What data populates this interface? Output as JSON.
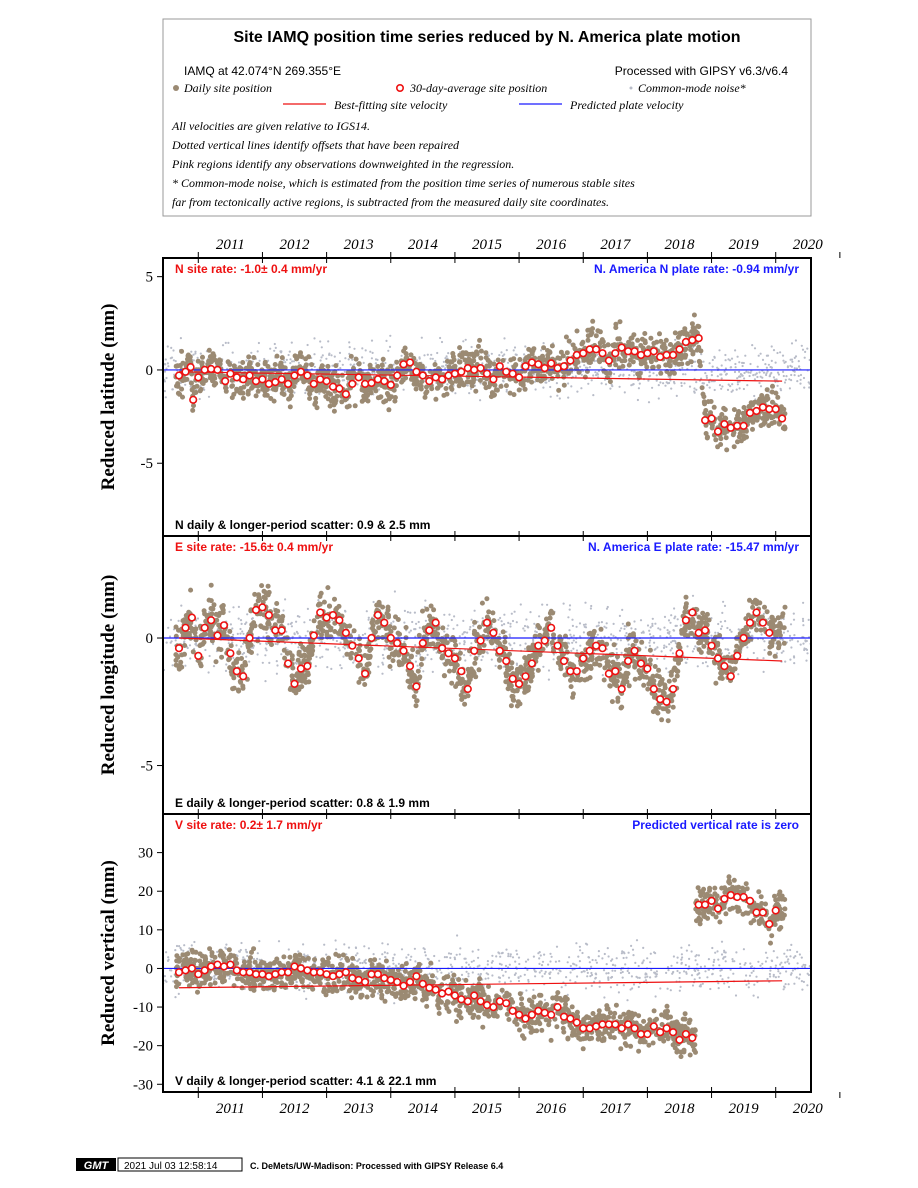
{
  "header": {
    "title": "Site IAMQ position time series reduced by N. America plate motion",
    "site_line": "IAMQ at 42.074°N 269.355°E",
    "processed": "Processed with GIPSY v6.3/v6.4",
    "legend": {
      "daily": "Daily site position",
      "avg30": "30-day-average site position",
      "cmn": "Common-mode noise*",
      "best": "Best-fitting site velocity",
      "predicted": "Predicted plate velocity"
    },
    "notes": [
      "All velocities are given relative to IGS14.",
      "Dotted vertical lines identify offsets that have been repaired",
      "Pink regions identify any observations downweighted in the regression.",
      "* Common-mode noise, which is estimated from the position time series of numerous stable sites",
      "far from tectonically active regions, is subtracted from the measured daily site coordinates."
    ]
  },
  "colors": {
    "daily": "#9b8a73",
    "cmn": "#b8bcc8",
    "avg_fill": "#ffffff",
    "avg_ring": "#ee1111",
    "fit_line": "#ee1111",
    "plate_line": "#1a1aff",
    "rate_text": "#ee1111",
    "plate_text": "#1a1aff"
  },
  "footer": {
    "logo": "GMT",
    "timestamp": "2021 Jul 03 12:58:14",
    "credit": "C. DeMets/UW-Madison: Processed with GIPSY Release 6.4"
  },
  "chart_data": [
    {
      "type": "scatter",
      "component": "N",
      "ylabel": "Reduced latitude (mm)",
      "ylim": [
        -8.9,
        6.0
      ],
      "yticks": [
        5,
        0,
        -5
      ],
      "xlim": [
        2010.45,
        2020.55
      ],
      "xticks": [
        2011,
        2012,
        2013,
        2014,
        2015,
        2016,
        2017,
        2018,
        2019,
        2020
      ],
      "site_rate": "N site rate:  -1.0± 0.4 mm/yr",
      "plate_rate": "N. America N plate rate: -0.94 mm/yr",
      "scatter_text": "N daily & longer-period scatter:   0.9 &   2.5 mm",
      "fit_line": [
        [
          2010.7,
          -0.1
        ],
        [
          2020.1,
          -0.6
        ]
      ],
      "plate_level": 0,
      "averages": [
        [
          2010.7,
          -0.3
        ],
        [
          2010.8,
          -0.1
        ],
        [
          2010.88,
          0.15
        ],
        [
          2010.92,
          -1.6
        ],
        [
          2011.0,
          -0.4
        ],
        [
          2011.1,
          0.0
        ],
        [
          2011.2,
          0.05
        ],
        [
          2011.3,
          0.0
        ],
        [
          2011.42,
          -0.6
        ],
        [
          2011.5,
          -0.2
        ],
        [
          2011.6,
          -0.4
        ],
        [
          2011.7,
          -0.5
        ],
        [
          2011.8,
          -0.3
        ],
        [
          2011.9,
          -0.6
        ],
        [
          2012.0,
          -0.5
        ],
        [
          2012.1,
          -0.75
        ],
        [
          2012.2,
          -0.65
        ],
        [
          2012.3,
          -0.5
        ],
        [
          2012.4,
          -0.75
        ],
        [
          2012.5,
          -0.3
        ],
        [
          2012.6,
          -0.1
        ],
        [
          2012.7,
          -0.3
        ],
        [
          2012.8,
          -0.75
        ],
        [
          2012.9,
          -0.5
        ],
        [
          2013.0,
          -0.6
        ],
        [
          2013.1,
          -0.9
        ],
        [
          2013.2,
          -1.0
        ],
        [
          2013.3,
          -1.3
        ],
        [
          2013.4,
          -0.75
        ],
        [
          2013.5,
          -0.4
        ],
        [
          2013.6,
          -0.75
        ],
        [
          2013.7,
          -0.7
        ],
        [
          2013.8,
          -0.5
        ],
        [
          2013.9,
          -0.6
        ],
        [
          2014.0,
          -0.8
        ],
        [
          2014.1,
          -0.3
        ],
        [
          2014.2,
          0.3
        ],
        [
          2014.3,
          0.4
        ],
        [
          2014.4,
          -0.1
        ],
        [
          2014.5,
          -0.3
        ],
        [
          2014.6,
          -0.6
        ],
        [
          2014.7,
          -0.4
        ],
        [
          2014.8,
          -0.5
        ],
        [
          2014.9,
          -0.3
        ],
        [
          2015.0,
          -0.2
        ],
        [
          2015.1,
          -0.1
        ],
        [
          2015.2,
          0.1
        ],
        [
          2015.3,
          0.0
        ],
        [
          2015.4,
          0.1
        ],
        [
          2015.5,
          -0.2
        ],
        [
          2015.6,
          -0.5
        ],
        [
          2015.7,
          0.2
        ],
        [
          2015.8,
          -0.1
        ],
        [
          2015.9,
          -0.2
        ],
        [
          2016.0,
          -0.4
        ],
        [
          2016.1,
          0.2
        ],
        [
          2016.2,
          0.4
        ],
        [
          2016.3,
          0.3
        ],
        [
          2016.4,
          0.1
        ],
        [
          2016.5,
          0.35
        ],
        [
          2016.6,
          0.1
        ],
        [
          2016.7,
          0.2
        ],
        [
          2016.8,
          0.5
        ],
        [
          2016.9,
          0.8
        ],
        [
          2017.0,
          0.9
        ],
        [
          2017.1,
          1.1
        ],
        [
          2017.2,
          1.1
        ],
        [
          2017.3,
          0.9
        ],
        [
          2017.4,
          0.5
        ],
        [
          2017.5,
          0.9
        ],
        [
          2017.6,
          1.2
        ],
        [
          2017.7,
          1.0
        ],
        [
          2017.8,
          1.0
        ],
        [
          2017.9,
          0.8
        ],
        [
          2018.0,
          0.9
        ],
        [
          2018.1,
          1.0
        ],
        [
          2018.2,
          0.7
        ],
        [
          2018.3,
          0.8
        ],
        [
          2018.4,
          0.8
        ],
        [
          2018.5,
          1.1
        ],
        [
          2018.6,
          1.5
        ],
        [
          2018.7,
          1.6
        ],
        [
          2018.8,
          1.7
        ],
        [
          2018.9,
          -2.7
        ],
        [
          2019.0,
          -2.6
        ],
        [
          2019.1,
          -3.3
        ],
        [
          2019.2,
          -2.9
        ],
        [
          2019.3,
          -3.1
        ],
        [
          2019.4,
          -3.0
        ],
        [
          2019.5,
          -3.0
        ],
        [
          2019.6,
          -2.3
        ],
        [
          2019.7,
          -2.2
        ],
        [
          2019.8,
          -2.0
        ],
        [
          2019.9,
          -2.1
        ],
        [
          2020.0,
          -2.1
        ],
        [
          2020.1,
          -2.6
        ]
      ]
    },
    {
      "type": "scatter",
      "component": "E",
      "ylabel": "Reduced longitude (mm)",
      "ylim": [
        -6.9,
        4.0
      ],
      "yticks": [
        0,
        -5
      ],
      "xlim": [
        2010.45,
        2020.55
      ],
      "xticks": [
        2011,
        2012,
        2013,
        2014,
        2015,
        2016,
        2017,
        2018,
        2019,
        2020
      ],
      "site_rate": "E site rate: -15.6± 0.4 mm/yr",
      "plate_rate": "N. America E plate rate: -15.47 mm/yr",
      "scatter_text": "E daily & longer-period scatter:   0.8 &   1.9 mm",
      "fit_line": [
        [
          2010.7,
          0.0
        ],
        [
          2020.1,
          -0.9
        ]
      ],
      "plate_level": 0,
      "averages": [
        [
          2010.7,
          -0.4
        ],
        [
          2010.8,
          0.4
        ],
        [
          2010.9,
          0.8
        ],
        [
          2011.0,
          -0.7
        ],
        [
          2011.1,
          0.4
        ],
        [
          2011.2,
          0.7
        ],
        [
          2011.3,
          0.1
        ],
        [
          2011.4,
          0.5
        ],
        [
          2011.5,
          -0.6
        ],
        [
          2011.6,
          -1.3
        ],
        [
          2011.7,
          -1.5
        ],
        [
          2011.8,
          0.0
        ],
        [
          2011.9,
          1.1
        ],
        [
          2012.0,
          1.2
        ],
        [
          2012.1,
          0.9
        ],
        [
          2012.2,
          0.3
        ],
        [
          2012.3,
          0.3
        ],
        [
          2012.4,
          -1.0
        ],
        [
          2012.5,
          -1.8
        ],
        [
          2012.6,
          -1.2
        ],
        [
          2012.7,
          -1.1
        ],
        [
          2012.8,
          0.1
        ],
        [
          2012.9,
          1.0
        ],
        [
          2013.0,
          0.8
        ],
        [
          2013.1,
          0.9
        ],
        [
          2013.2,
          0.7
        ],
        [
          2013.3,
          0.2
        ],
        [
          2013.4,
          -0.3
        ],
        [
          2013.5,
          -0.8
        ],
        [
          2013.6,
          -1.4
        ],
        [
          2013.7,
          0.0
        ],
        [
          2013.8,
          0.9
        ],
        [
          2013.9,
          0.6
        ],
        [
          2014.0,
          0.0
        ],
        [
          2014.1,
          -0.2
        ],
        [
          2014.2,
          -0.5
        ],
        [
          2014.3,
          -1.1
        ],
        [
          2014.4,
          -1.9
        ],
        [
          2014.5,
          -0.2
        ],
        [
          2014.6,
          0.3
        ],
        [
          2014.7,
          0.6
        ],
        [
          2014.8,
          -0.4
        ],
        [
          2014.9,
          -0.6
        ],
        [
          2015.0,
          -0.8
        ],
        [
          2015.1,
          -1.3
        ],
        [
          2015.2,
          -2.0
        ],
        [
          2015.3,
          -0.5
        ],
        [
          2015.4,
          -0.1
        ],
        [
          2015.5,
          0.6
        ],
        [
          2015.6,
          0.2
        ],
        [
          2015.7,
          -0.5
        ],
        [
          2015.8,
          -0.9
        ],
        [
          2015.9,
          -1.6
        ],
        [
          2016.0,
          -1.8
        ],
        [
          2016.1,
          -1.5
        ],
        [
          2016.2,
          -1.0
        ],
        [
          2016.3,
          -0.3
        ],
        [
          2016.4,
          -0.1
        ],
        [
          2016.5,
          0.4
        ],
        [
          2016.6,
          -0.3
        ],
        [
          2016.7,
          -0.9
        ],
        [
          2016.8,
          -1.3
        ],
        [
          2016.9,
          -1.3
        ],
        [
          2017.0,
          -0.8
        ],
        [
          2017.1,
          -0.5
        ],
        [
          2017.2,
          -0.3
        ],
        [
          2017.3,
          -0.4
        ],
        [
          2017.4,
          -1.4
        ],
        [
          2017.5,
          -1.3
        ],
        [
          2017.6,
          -2.0
        ],
        [
          2017.7,
          -0.9
        ],
        [
          2017.8,
          -0.5
        ],
        [
          2017.9,
          -1.0
        ],
        [
          2018.0,
          -1.2
        ],
        [
          2018.1,
          -2.0
        ],
        [
          2018.2,
          -2.4
        ],
        [
          2018.3,
          -2.5
        ],
        [
          2018.4,
          -2.0
        ],
        [
          2018.5,
          -0.6
        ],
        [
          2018.6,
          0.7
        ],
        [
          2018.7,
          1.0
        ],
        [
          2018.8,
          0.2
        ],
        [
          2018.9,
          0.3
        ],
        [
          2019.0,
          -0.3
        ],
        [
          2019.1,
          -0.8
        ],
        [
          2019.2,
          -1.1
        ],
        [
          2019.3,
          -1.5
        ],
        [
          2019.4,
          -0.7
        ],
        [
          2019.5,
          0.0
        ],
        [
          2019.6,
          0.6
        ],
        [
          2019.7,
          1.0
        ],
        [
          2019.8,
          0.6
        ],
        [
          2019.9,
          0.2
        ]
      ]
    },
    {
      "type": "scatter",
      "component": "V",
      "ylabel": "Reduced vertical (mm)",
      "ylim": [
        -32,
        40
      ],
      "yticks": [
        30,
        20,
        10,
        0,
        -10,
        -20,
        -30
      ],
      "xlim": [
        2010.45,
        2020.55
      ],
      "xticks": [
        2011,
        2012,
        2013,
        2014,
        2015,
        2016,
        2017,
        2018,
        2019,
        2020
      ],
      "site_rate": "V site rate:   0.2± 1.7 mm/yr",
      "plate_rate": "Predicted vertical rate is zero",
      "scatter_text": "V daily & longer-period scatter:   4.1 &  22.1 mm",
      "fit_line": [
        [
          2010.7,
          -5.0
        ],
        [
          2020.1,
          -3.2
        ]
      ],
      "plate_level": 0,
      "averages": [
        [
          2010.7,
          -1.0
        ],
        [
          2010.8,
          -0.5
        ],
        [
          2010.9,
          0.0
        ],
        [
          2011.0,
          -1.5
        ],
        [
          2011.1,
          -0.5
        ],
        [
          2011.2,
          0.5
        ],
        [
          2011.3,
          1.0
        ],
        [
          2011.4,
          0.5
        ],
        [
          2011.5,
          1.0
        ],
        [
          2011.6,
          -0.5
        ],
        [
          2011.7,
          -1.0
        ],
        [
          2011.8,
          -1.0
        ],
        [
          2011.9,
          -1.5
        ],
        [
          2012.0,
          -1.5
        ],
        [
          2012.1,
          -2.0
        ],
        [
          2012.2,
          -1.5
        ],
        [
          2012.3,
          -1.0
        ],
        [
          2012.4,
          -1.0
        ],
        [
          2012.5,
          0.5
        ],
        [
          2012.6,
          0.0
        ],
        [
          2012.7,
          -0.5
        ],
        [
          2012.8,
          -1.0
        ],
        [
          2012.9,
          -1.0
        ],
        [
          2013.0,
          -1.5
        ],
        [
          2013.1,
          -2.0
        ],
        [
          2013.2,
          -1.5
        ],
        [
          2013.3,
          -1.0
        ],
        [
          2013.4,
          -2.5
        ],
        [
          2013.5,
          -3.0
        ],
        [
          2013.6,
          -3.5
        ],
        [
          2013.7,
          -1.5
        ],
        [
          2013.8,
          -1.5
        ],
        [
          2013.9,
          -2.5
        ],
        [
          2014.0,
          -3.0
        ],
        [
          2014.1,
          -3.5
        ],
        [
          2014.2,
          -4.5
        ],
        [
          2014.3,
          -3.5
        ],
        [
          2014.4,
          -2.0
        ],
        [
          2014.5,
          -4.0
        ],
        [
          2014.6,
          -5.0
        ],
        [
          2014.7,
          -5.5
        ],
        [
          2014.8,
          -6.5
        ],
        [
          2014.9,
          -6.0
        ],
        [
          2015.0,
          -7.0
        ],
        [
          2015.1,
          -8.0
        ],
        [
          2015.2,
          -8.5
        ],
        [
          2015.3,
          -7.0
        ],
        [
          2015.4,
          -8.5
        ],
        [
          2015.5,
          -9.5
        ],
        [
          2015.6,
          -10.0
        ],
        [
          2015.7,
          -8.5
        ],
        [
          2015.8,
          -9.0
        ],
        [
          2015.9,
          -11.0
        ],
        [
          2016.0,
          -12.0
        ],
        [
          2016.1,
          -13.0
        ],
        [
          2016.2,
          -12.0
        ],
        [
          2016.3,
          -11.0
        ],
        [
          2016.4,
          -11.5
        ],
        [
          2016.5,
          -12.0
        ],
        [
          2016.6,
          -10.0
        ],
        [
          2016.7,
          -12.5
        ],
        [
          2016.8,
          -13.0
        ],
        [
          2016.9,
          -14.0
        ],
        [
          2017.0,
          -15.5
        ],
        [
          2017.1,
          -15.5
        ],
        [
          2017.2,
          -15.0
        ],
        [
          2017.3,
          -14.5
        ],
        [
          2017.4,
          -14.5
        ],
        [
          2017.5,
          -14.5
        ],
        [
          2017.6,
          -15.5
        ],
        [
          2017.7,
          -14.5
        ],
        [
          2017.8,
          -15.5
        ],
        [
          2017.9,
          -17.0
        ],
        [
          2018.0,
          -17.0
        ],
        [
          2018.1,
          -15.0
        ],
        [
          2018.2,
          -16.5
        ],
        [
          2018.3,
          -15.5
        ],
        [
          2018.4,
          -16.5
        ],
        [
          2018.5,
          -18.5
        ],
        [
          2018.6,
          -17.0
        ],
        [
          2018.7,
          -18.0
        ],
        [
          2018.8,
          16.5
        ],
        [
          2018.9,
          16.5
        ],
        [
          2019.0,
          17.5
        ],
        [
          2019.1,
          15.5
        ],
        [
          2019.2,
          18.0
        ],
        [
          2019.3,
          19.0
        ],
        [
          2019.4,
          18.5
        ],
        [
          2019.5,
          18.5
        ],
        [
          2019.6,
          17.5
        ],
        [
          2019.7,
          14.5
        ],
        [
          2019.8,
          14.5
        ],
        [
          2019.9,
          11.5
        ],
        [
          2020.0,
          15.0
        ]
      ]
    }
  ]
}
